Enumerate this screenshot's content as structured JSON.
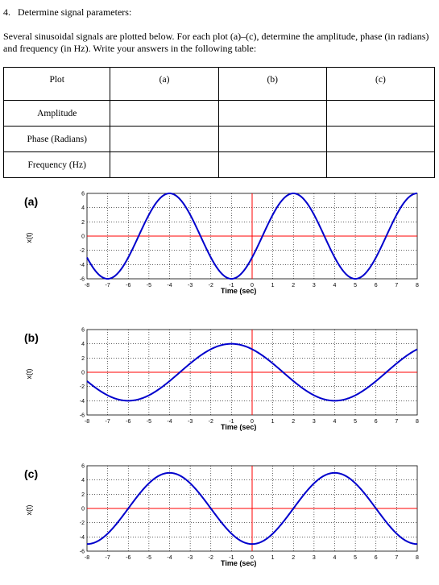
{
  "heading": "4.   Determine signal parameters:",
  "intro": "Several sinusoidal signals are plotted below. For each plot (a)–(c), determine the amplitude, phase (in radians) and frequency (in Hz). Write your answers in the following table:",
  "table": {
    "headers": [
      "Plot",
      "(a)",
      "(b)",
      "(c)"
    ],
    "rows": [
      {
        "label": "Amplitude"
      },
      {
        "label": "Phase (Radians)"
      },
      {
        "label": "Frequency (Hz)"
      }
    ]
  },
  "colors": {
    "signal": "#0000cc",
    "axis": "#ff0000",
    "grid": "#000000"
  },
  "chart_data": [
    {
      "type": "line",
      "panel_label": "(a)",
      "xlabel": "Time (sec)",
      "ylabel": "x(t)",
      "xlim": [
        -8,
        8
      ],
      "ylim": [
        -6,
        6
      ],
      "xticks": [
        "-8",
        "-7",
        "-6",
        "-5",
        "-4",
        "-3",
        "-2",
        "-1",
        "0",
        "1",
        "2",
        "3",
        "4",
        "5",
        "6",
        "7",
        "8"
      ],
      "yticks": [
        "6",
        "4",
        "2",
        "0",
        "-2",
        "-4",
        "-6"
      ],
      "grid": true,
      "signal": {
        "amplitude": 6,
        "period": 6,
        "peak_at": -4
      }
    },
    {
      "type": "line",
      "panel_label": "(b)",
      "xlabel": "Time (sec)",
      "ylabel": "x(t)",
      "xlim": [
        -8,
        8
      ],
      "ylim": [
        -6,
        6
      ],
      "xticks": [
        "-8",
        "-7",
        "-6",
        "-5",
        "-4",
        "-3",
        "-2",
        "-1",
        "0",
        "1",
        "2",
        "3",
        "4",
        "5",
        "6",
        "7",
        "8"
      ],
      "yticks": [
        "6",
        "4",
        "2",
        "0",
        "-2",
        "-4",
        "-6"
      ],
      "grid": true,
      "signal": {
        "amplitude": 4,
        "period": 10,
        "peak_at": -1
      }
    },
    {
      "type": "line",
      "panel_label": "(c)",
      "xlabel": "Time (sec)",
      "ylabel": "x(t)",
      "xlim": [
        -8,
        8
      ],
      "ylim": [
        -6,
        6
      ],
      "xticks": [
        "-8",
        "-7",
        "-6",
        "-5",
        "-4",
        "-3",
        "-2",
        "-1",
        "0",
        "1",
        "2",
        "3",
        "4",
        "5",
        "6",
        "7",
        "8"
      ],
      "yticks": [
        "6",
        "4",
        "2",
        "0",
        "-2",
        "-4",
        "-6"
      ],
      "grid": true,
      "signal": {
        "amplitude": 5,
        "period": 8,
        "peak_at": -4
      }
    }
  ]
}
